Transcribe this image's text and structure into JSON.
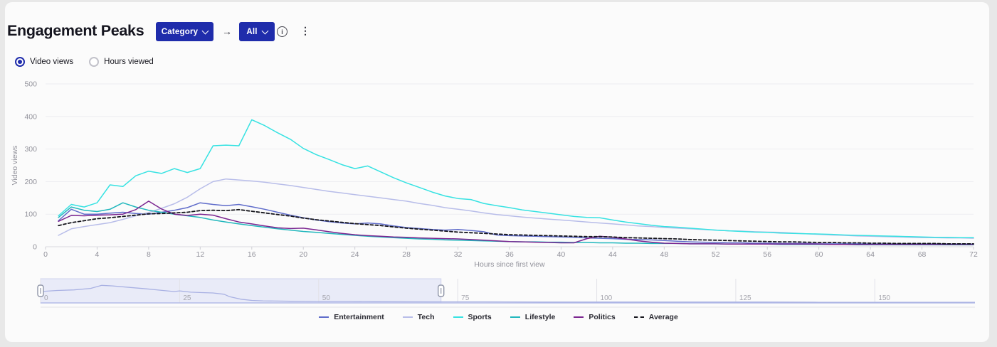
{
  "header": {
    "title": "Engagement Peaks",
    "category_button": "Category",
    "filter_button": "All",
    "arrow": "→",
    "info_glyph": "i",
    "kebab_glyph": "⋮"
  },
  "toggles": {
    "selected": "video_views",
    "video_views": "Video views",
    "hours_viewed": "Hours viewed"
  },
  "colors": {
    "accent_blue": "#1f2cab",
    "grid": "#ededf1",
    "axis_text": "#92929b",
    "baseline": "#d9d9df",
    "brush_fill": "#e9ebf8",
    "brush_border": "#cfd3ee",
    "brush_line": "#a9b1e3",
    "brush_baseline": "#b4bbe8"
  },
  "chart_data": {
    "type": "line",
    "title": "Engagement Peaks",
    "xlabel": "Hours since first view",
    "ylabel": "Video views",
    "xlim": [
      0,
      72
    ],
    "ylim": [
      0,
      500
    ],
    "x_ticks": [
      0,
      4,
      8,
      12,
      16,
      20,
      24,
      28,
      32,
      36,
      40,
      44,
      48,
      52,
      56,
      60,
      64,
      68,
      72
    ],
    "y_ticks": [
      0,
      100,
      200,
      300,
      400,
      500
    ],
    "grid": "horizontal",
    "legend_position": "bottom-center",
    "x": [
      1,
      2,
      3,
      4,
      5,
      6,
      7,
      8,
      9,
      10,
      11,
      12,
      13,
      14,
      15,
      16,
      17,
      18,
      19,
      20,
      21,
      22,
      23,
      24,
      25,
      26,
      27,
      28,
      29,
      30,
      31,
      32,
      33,
      34,
      35,
      36,
      37,
      38,
      39,
      40,
      41,
      42,
      43,
      44,
      45,
      46,
      47,
      48,
      49,
      50,
      51,
      52,
      53,
      54,
      55,
      56,
      57,
      58,
      59,
      60,
      61,
      62,
      63,
      64,
      65,
      66,
      67,
      68,
      69,
      70,
      71,
      72
    ],
    "series": [
      {
        "name": "Entertainment",
        "color": "#5f6cca",
        "dash": null,
        "values": [
          80,
          115,
          100,
          100,
          103,
          106,
          102,
          100,
          106,
          112,
          120,
          135,
          130,
          126,
          130,
          123,
          115,
          106,
          97,
          89,
          82,
          77,
          73,
          70,
          73,
          70,
          64,
          59,
          56,
          53,
          51,
          53,
          50,
          46,
          36,
          34,
          33,
          32,
          31,
          30,
          29,
          27,
          26,
          25,
          23,
          22,
          21,
          19,
          17,
          15,
          14,
          13,
          12,
          12,
          11,
          11,
          10,
          10,
          10,
          9,
          9,
          9,
          9,
          8,
          8,
          8,
          8,
          8,
          8,
          8,
          8,
          8
        ]
      },
      {
        "name": "Tech",
        "color": "#b8bde9",
        "dash": null,
        "values": [
          35,
          55,
          62,
          68,
          74,
          84,
          95,
          105,
          118,
          132,
          152,
          178,
          200,
          208,
          205,
          202,
          198,
          193,
          188,
          182,
          176,
          170,
          165,
          160,
          155,
          150,
          145,
          140,
          133,
          127,
          120,
          115,
          110,
          104,
          99,
          95,
          91,
          88,
          85,
          82,
          79,
          76,
          73,
          70,
          67,
          64,
          62,
          59,
          57,
          55,
          53,
          51,
          49,
          48,
          46,
          45,
          44,
          42,
          40,
          38,
          36,
          35,
          33,
          32,
          31,
          30,
          29,
          28,
          28,
          27,
          27,
          26
        ]
      },
      {
        "name": "Sports",
        "color": "#36e2e2",
        "dash": null,
        "values": [
          95,
          130,
          122,
          135,
          190,
          185,
          218,
          232,
          225,
          240,
          228,
          240,
          310,
          312,
          310,
          390,
          372,
          350,
          330,
          302,
          283,
          268,
          252,
          240,
          248,
          230,
          212,
          196,
          182,
          168,
          156,
          148,
          145,
          133,
          126,
          120,
          113,
          108,
          103,
          98,
          93,
          90,
          89,
          82,
          76,
          71,
          66,
          62,
          60,
          57,
          54,
          51,
          49,
          47,
          45,
          44,
          42,
          41,
          40,
          39,
          38,
          36,
          35,
          34,
          33,
          32,
          31,
          30,
          29,
          29,
          28,
          28
        ]
      },
      {
        "name": "Lifestyle",
        "color": "#21b7bd",
        "dash": null,
        "values": [
          90,
          122,
          112,
          108,
          115,
          135,
          122,
          112,
          106,
          100,
          95,
          90,
          82,
          76,
          70,
          65,
          60,
          55,
          51,
          47,
          44,
          41,
          38,
          35,
          32,
          30,
          28,
          26,
          24,
          23,
          21,
          20,
          19,
          18,
          17,
          16,
          15,
          15,
          14,
          14,
          13,
          13,
          12,
          12,
          11,
          11,
          10,
          10,
          10,
          9,
          9,
          9,
          8,
          8,
          8,
          8,
          7,
          7,
          7,
          7,
          7,
          7,
          6,
          6,
          6,
          6,
          6,
          6,
          6,
          6,
          6,
          6
        ]
      },
      {
        "name": "Politics",
        "color": "#7b2590",
        "dash": null,
        "values": [
          78,
          96,
          95,
          97,
          98,
          100,
          114,
          140,
          116,
          100,
          96,
          100,
          97,
          86,
          76,
          70,
          64,
          58,
          56,
          57,
          52,
          46,
          41,
          37,
          34,
          32,
          30,
          29,
          27,
          26,
          25,
          24,
          22,
          20,
          18,
          16,
          15,
          14,
          13,
          12,
          12,
          25,
          32,
          29,
          24,
          18,
          14,
          11,
          10,
          9,
          9,
          9,
          8,
          8,
          8,
          8,
          8,
          8,
          8,
          8,
          7,
          7,
          7,
          7,
          7,
          7,
          7,
          7,
          7,
          7,
          7,
          7
        ]
      },
      {
        "name": "Average",
        "color": "#15151c",
        "dash": "4,3",
        "values": [
          65,
          74,
          80,
          86,
          89,
          93,
          97,
          101,
          102,
          104,
          106,
          111,
          112,
          111,
          114,
          109,
          104,
          99,
          94,
          88,
          83,
          79,
          75,
          71,
          68,
          65,
          61,
          57,
          54,
          51,
          48,
          45,
          43,
          41,
          39,
          37,
          36,
          35,
          34,
          33,
          32,
          31,
          31,
          30,
          28,
          27,
          26,
          25,
          24,
          22,
          21,
          20,
          19,
          18,
          17,
          16,
          15,
          15,
          14,
          13,
          13,
          12,
          12,
          11,
          11,
          10,
          10,
          10,
          10,
          9,
          9,
          9
        ]
      }
    ],
    "brush": {
      "xlim": [
        0,
        168
      ],
      "ylim": [
        0,
        110
      ],
      "ticks": [
        0,
        25,
        50,
        75,
        100,
        125,
        150
      ],
      "selection": [
        0,
        72
      ],
      "x": [
        0,
        3,
        6,
        9,
        11,
        13,
        16,
        19,
        22,
        24,
        25,
        27,
        29,
        31,
        33,
        34,
        36,
        38,
        40,
        45,
        50,
        55,
        60,
        70,
        80,
        90,
        100,
        110,
        120,
        130,
        140,
        150,
        160,
        168
      ],
      "values": [
        55,
        60,
        63,
        70,
        85,
        82,
        75,
        68,
        60,
        55,
        58,
        52,
        50,
        48,
        42,
        30,
        18,
        12,
        10,
        8,
        7,
        7,
        6,
        5,
        5,
        4,
        4,
        4,
        4,
        4,
        3,
        3,
        3,
        3
      ]
    }
  }
}
